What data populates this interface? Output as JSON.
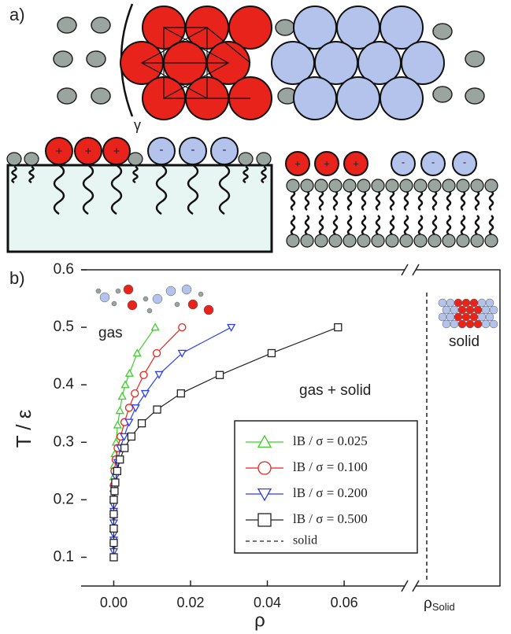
{
  "panel_a": {
    "label": "a)",
    "gamma": "γ",
    "plus": "+",
    "minus": "-"
  },
  "chart_data": {
    "type": "line",
    "panel_label": "b)",
    "x_label": "ρ",
    "y_label": "T / ε",
    "xlim": [
      -0.0085,
      0.077
    ],
    "ylim": [
      0.05,
      0.6
    ],
    "xticks": [
      {
        "value": 0,
        "label": "0.00"
      },
      {
        "value": 0.02,
        "label": "0.02"
      },
      {
        "value": 0.04,
        "label": "0.04"
      },
      {
        "value": 0.06,
        "label": "0.06"
      }
    ],
    "yticks": [
      0.1,
      0.2,
      0.3,
      0.4,
      0.5,
      0.6
    ],
    "rho_solid": {
      "symbol": "ρ",
      "subscript": "Solid"
    },
    "annotations": {
      "gas": "gas",
      "coexistence": "gas + solid",
      "solid": "solid"
    },
    "solid_legend": "solid",
    "series": [
      {
        "name": "lB / σ = 0.025",
        "color": "#3ecf2a",
        "marker": "triangle-up",
        "x": [
          0,
          0,
          0,
          0,
          0,
          0,
          0,
          0.0001,
          0.0003,
          0.0006,
          0.001,
          0.0016,
          0.0022,
          0.003,
          0.0041,
          0.0061,
          0.0108
        ],
        "values": [
          0.1,
          0.125,
          0.15,
          0.175,
          0.2,
          0.22,
          0.24,
          0.26,
          0.28,
          0.3,
          0.33,
          0.355,
          0.38,
          0.4,
          0.42,
          0.455,
          0.5
        ]
      },
      {
        "name": "lB / σ = 0.100",
        "color": "#e8231c",
        "marker": "circle",
        "x": [
          0,
          0,
          0,
          0,
          0,
          0,
          0.0002,
          0.0005,
          0.001,
          0.0018,
          0.0028,
          0.004,
          0.0055,
          0.0078,
          0.0112,
          0.0178
        ],
        "values": [
          0.1,
          0.125,
          0.15,
          0.175,
          0.2,
          0.225,
          0.25,
          0.27,
          0.29,
          0.31,
          0.335,
          0.36,
          0.385,
          0.417,
          0.455,
          0.5
        ]
      },
      {
        "name": "lB / σ = 0.200",
        "color": "#2b3ff0",
        "marker": "triangle-down",
        "x": [
          0,
          0,
          0,
          0,
          0,
          0,
          0,
          0,
          0,
          0,
          0,
          0.0002,
          0.0005,
          0.001,
          0.0017,
          0.0027,
          0.004,
          0.0057,
          0.0082,
          0.0118,
          0.0178,
          0.0306
        ],
        "values": [
          0.11,
          0.12,
          0.13,
          0.14,
          0.15,
          0.16,
          0.17,
          0.18,
          0.19,
          0.2,
          0.21,
          0.22,
          0.24,
          0.265,
          0.29,
          0.31,
          0.335,
          0.36,
          0.385,
          0.418,
          0.455,
          0.5
        ]
      },
      {
        "name": "lB / σ = 0.500",
        "color": "#222222",
        "marker": "square",
        "x": [
          0,
          0,
          0,
          0,
          0,
          0.0002,
          0.0004,
          0.0009,
          0.0016,
          0.0028,
          0.0046,
          0.0073,
          0.0113,
          0.0175,
          0.0276,
          0.0411,
          0.0584
        ],
        "values": [
          0.1,
          0.125,
          0.15,
          0.175,
          0.2,
          0.215,
          0.23,
          0.25,
          0.27,
          0.29,
          0.31,
          0.333,
          0.357,
          0.385,
          0.417,
          0.455,
          0.5
        ]
      }
    ]
  }
}
